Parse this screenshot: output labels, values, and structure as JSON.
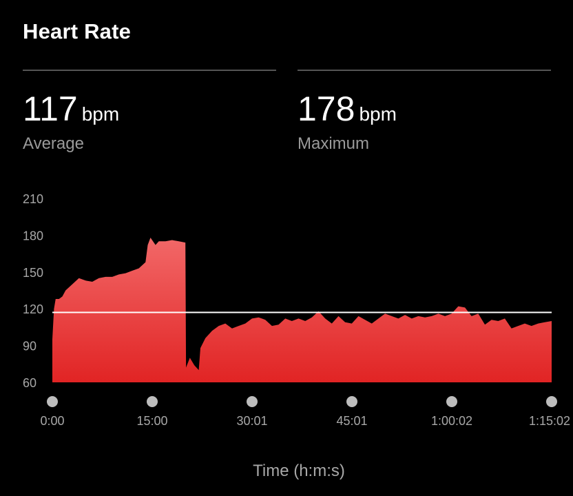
{
  "header": {
    "title": "Heart Rate"
  },
  "stats": {
    "average": {
      "value": "117",
      "unit": "bpm",
      "label": "Average"
    },
    "maximum": {
      "value": "178",
      "unit": "bpm",
      "label": "Maximum"
    }
  },
  "colors": {
    "fill_top": "#f26868",
    "fill_bottom": "#e12424",
    "average_line": "#ffffff",
    "tick_dot": "#bdbdbd"
  },
  "chart_data": {
    "type": "area",
    "xlabel": "Time (h:m:s)",
    "ylabel": "",
    "ylim": [
      60,
      210
    ],
    "xlim": [
      "0:00",
      "1:15:02"
    ],
    "y_ticks": [
      210,
      180,
      150,
      120,
      90,
      60
    ],
    "x_ticks": [
      "0:00",
      "15:00",
      "30:01",
      "45:01",
      "1:00:02",
      "1:15:02"
    ],
    "reference_line": {
      "value": 117
    },
    "series": [
      {
        "x": [
          "0:00",
          "0:15",
          "0:30",
          "1:00",
          "1:30",
          "2:00",
          "3:00",
          "4:00",
          "5:00",
          "6:00",
          "7:00",
          "8:00",
          "9:00",
          "10:00",
          "11:00",
          "12:00",
          "13:00",
          "14:00",
          "14:20",
          "14:45",
          "15:30",
          "16:00",
          "17:00",
          "18:00",
          "19:00",
          "20:00",
          "20:05",
          "20:40",
          "21:20",
          "22:00",
          "22:15",
          "23:00",
          "24:00",
          "25:00",
          "26:00",
          "27:00",
          "28:00",
          "29:00",
          "30:00",
          "31:00",
          "32:00",
          "33:00",
          "34:00",
          "35:00",
          "36:00",
          "37:00",
          "38:00",
          "39:00",
          "40:00",
          "41:00",
          "42:00",
          "43:00",
          "44:00",
          "45:00",
          "46:00",
          "47:00",
          "48:00",
          "49:00",
          "50:00",
          "51:00",
          "52:00",
          "53:00",
          "54:00",
          "55:00",
          "56:00",
          "57:00",
          "58:00",
          "59:00",
          "1:00:00",
          "1:01:00",
          "1:02:00",
          "1:03:00",
          "1:04:00",
          "1:05:00",
          "1:06:00",
          "1:07:00",
          "1:08:00",
          "1:09:00",
          "1:10:00",
          "1:11:00",
          "1:12:00",
          "1:13:00",
          "1:14:00",
          "1:15:02"
        ],
        "values": [
          95,
          120,
          128,
          128,
          130,
          135,
          140,
          145,
          143,
          142,
          145,
          146,
          146,
          148,
          149,
          151,
          153,
          158,
          172,
          178,
          172,
          175,
          175,
          176,
          175,
          174,
          72,
          80,
          74,
          70,
          88,
          96,
          102,
          106,
          108,
          104,
          106,
          108,
          112,
          113,
          111,
          106,
          107,
          112,
          110,
          112,
          110,
          113,
          118,
          112,
          108,
          114,
          109,
          108,
          114,
          111,
          108,
          112,
          116,
          114,
          112,
          115,
          112,
          114,
          113,
          114,
          116,
          114,
          116,
          122,
          121,
          114,
          116,
          107,
          111,
          110,
          112,
          104,
          106,
          108,
          106,
          108,
          109,
          110
        ]
      }
    ]
  }
}
